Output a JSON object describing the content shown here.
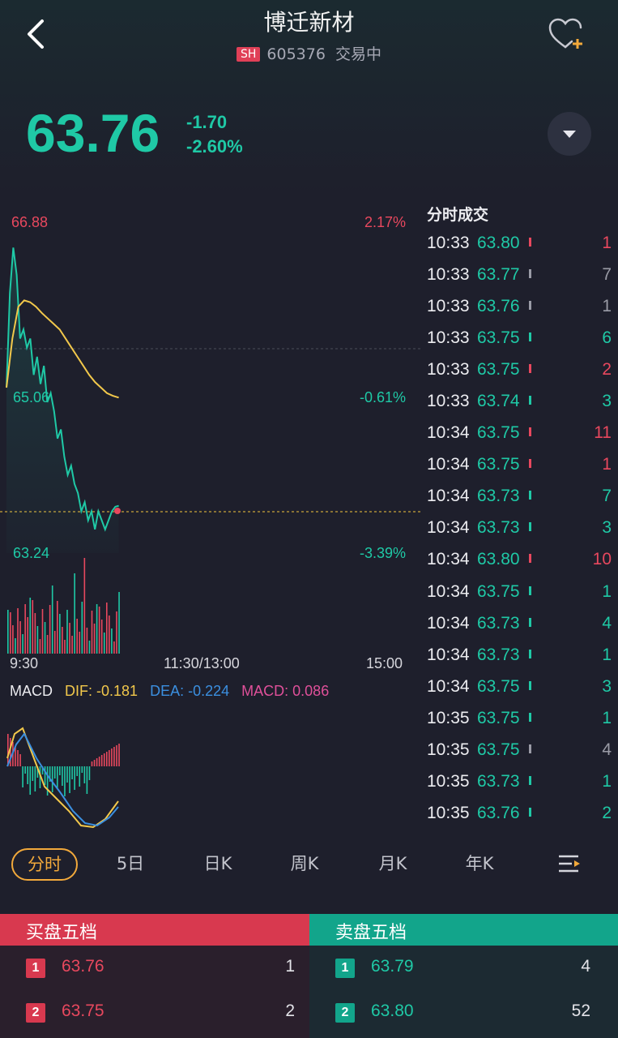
{
  "header": {
    "title": "博迁新材",
    "exchange_badge": "SH",
    "code": "605376",
    "status": "交易中"
  },
  "quote": {
    "price": "63.76",
    "change": "-1.70",
    "change_pct": "-2.60%"
  },
  "chart": {
    "price_top": "66.88",
    "pct_top": "2.17%",
    "price_mid": "65.06",
    "pct_mid": "-0.61%",
    "price_bot": "63.24",
    "pct_bot": "-3.39%",
    "time_start": "9:30",
    "time_mid": "11:30/13:00",
    "time_end": "15:00",
    "macd_title": "MACD",
    "dif": "DIF: -0.181",
    "dea": "DEA: -0.224",
    "macd": "MACD: 0.086"
  },
  "chart_data": {
    "type": "line",
    "title": "分时",
    "prev_close": 65.46,
    "ylim": [
      63.24,
      66.88
    ],
    "series": [
      {
        "name": "price",
        "color": "#1fc9a6",
        "values": [
          65.06,
          66.1,
          66.6,
          66.3,
          65.6,
          65.7,
          65.5,
          65.6,
          65.2,
          65.4,
          65.1,
          65.3,
          64.9,
          65.0,
          64.8,
          64.5,
          64.6,
          64.3,
          64.1,
          64.2,
          64.0,
          63.9,
          63.7,
          63.8,
          63.6,
          63.7,
          63.5,
          63.7,
          63.6,
          63.5,
          63.6,
          63.7,
          63.75,
          63.76
        ]
      },
      {
        "name": "avg",
        "color": "#f2c84b",
        "values": [
          65.06,
          65.6,
          65.95,
          66.02,
          66.0,
          65.95,
          65.88,
          65.82,
          65.76,
          65.7,
          65.6,
          65.5,
          65.4,
          65.3,
          65.2,
          65.12,
          65.06,
          65.0,
          64.97,
          64.95
        ]
      }
    ]
  },
  "trades_title": "分时成交",
  "trades": [
    {
      "time": "10:33",
      "price": "63.80",
      "vol": "1",
      "dir": "up"
    },
    {
      "time": "10:33",
      "price": "63.77",
      "vol": "7",
      "dir": "flat"
    },
    {
      "time": "10:33",
      "price": "63.76",
      "vol": "1",
      "dir": "flat"
    },
    {
      "time": "10:33",
      "price": "63.75",
      "vol": "6",
      "dir": "down"
    },
    {
      "time": "10:33",
      "price": "63.75",
      "vol": "2",
      "dir": "up"
    },
    {
      "time": "10:33",
      "price": "63.74",
      "vol": "3",
      "dir": "down"
    },
    {
      "time": "10:34",
      "price": "63.75",
      "vol": "11",
      "dir": "up"
    },
    {
      "time": "10:34",
      "price": "63.75",
      "vol": "1",
      "dir": "up"
    },
    {
      "time": "10:34",
      "price": "63.73",
      "vol": "7",
      "dir": "down"
    },
    {
      "time": "10:34",
      "price": "63.73",
      "vol": "3",
      "dir": "down"
    },
    {
      "time": "10:34",
      "price": "63.80",
      "vol": "10",
      "dir": "up"
    },
    {
      "time": "10:34",
      "price": "63.75",
      "vol": "1",
      "dir": "down"
    },
    {
      "time": "10:34",
      "price": "63.73",
      "vol": "4",
      "dir": "down"
    },
    {
      "time": "10:34",
      "price": "63.73",
      "vol": "1",
      "dir": "down"
    },
    {
      "time": "10:34",
      "price": "63.75",
      "vol": "3",
      "dir": "down"
    },
    {
      "time": "10:35",
      "price": "63.75",
      "vol": "1",
      "dir": "down"
    },
    {
      "time": "10:35",
      "price": "63.75",
      "vol": "4",
      "dir": "flat"
    },
    {
      "time": "10:35",
      "price": "63.73",
      "vol": "1",
      "dir": "down"
    },
    {
      "time": "10:35",
      "price": "63.76",
      "vol": "2",
      "dir": "down"
    }
  ],
  "tabs": [
    "分时",
    "5日",
    "日K",
    "周K",
    "月K",
    "年K"
  ],
  "book": {
    "buy_title": "买盘五档",
    "sell_title": "卖盘五档",
    "buy": [
      {
        "idx": "1",
        "price": "63.76",
        "vol": "1"
      },
      {
        "idx": "2",
        "price": "63.75",
        "vol": "2"
      }
    ],
    "sell": [
      {
        "idx": "1",
        "price": "63.79",
        "vol": "4"
      },
      {
        "idx": "2",
        "price": "63.80",
        "vol": "52"
      }
    ]
  },
  "colors": {
    "up": "#e8485e",
    "down": "#1fc9a6",
    "avg": "#f2c84b",
    "dea": "#3b8fe0",
    "macd": "#e0509a"
  }
}
